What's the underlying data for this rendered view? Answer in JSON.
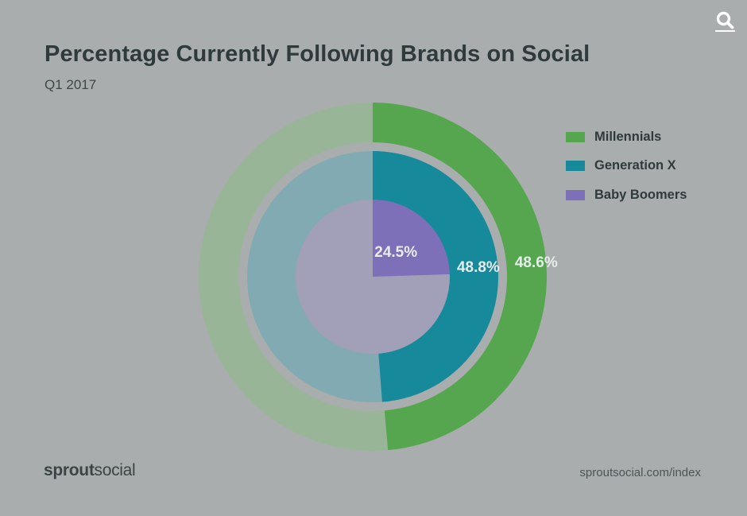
{
  "header": {
    "title": "Percentage Currently Following Brands on Social",
    "subtitle": "Q1 2017"
  },
  "toolbar": {
    "search_icon": "search-icon"
  },
  "footer": {
    "brand_part1": "sprout",
    "brand_part2": "social",
    "source_url": "sproutsocial.com/index"
  },
  "chart_data": {
    "type": "pie",
    "subtype": "nested-donut",
    "title": "Percentage Currently Following Brands on Social",
    "subtitle": "Q1 2017",
    "legend_position": "right",
    "series": [
      {
        "name": "Millennials",
        "value": 48.6,
        "label": "48.6%",
        "color": "#55a64f",
        "remainder_color": "#99b598"
      },
      {
        "name": "Generation X",
        "value": 48.8,
        "label": "48.8%",
        "color": "#168a9b",
        "remainder_color": "#82aab2"
      },
      {
        "name": "Baby Boomers",
        "value": 24.5,
        "label": "24.5%",
        "color": "#7e6fb9",
        "remainder_color": "#a2a0b8"
      }
    ]
  }
}
